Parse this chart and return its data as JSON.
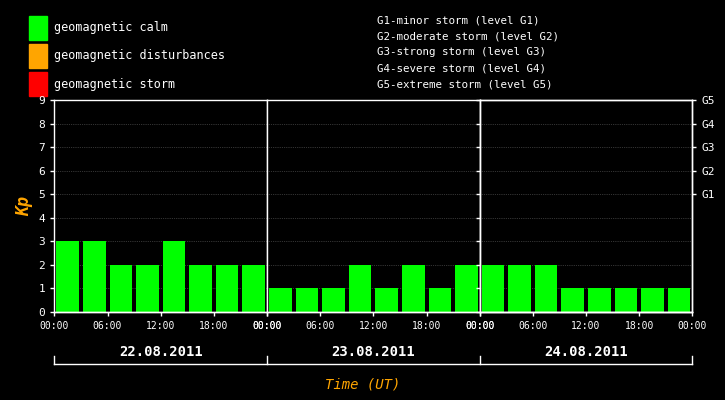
{
  "background_color": "#000000",
  "bar_color_calm": "#00ff00",
  "bar_color_disturbance": "#ffa500",
  "bar_color_storm": "#ff0000",
  "axis_color": "#ffffff",
  "tick_color": "#ffffff",
  "title_color": "#ffa500",
  "kp_label_color": "#ffa500",
  "date_label_color": "#ffffff",
  "legend_text_color": "#ffffff",
  "right_label_color": "#ffffff",
  "grid_color": "#666666",
  "days": [
    "22.08.2011",
    "23.08.2011",
    "24.08.2011"
  ],
  "kp_values": [
    [
      3,
      3,
      2,
      2,
      3,
      2,
      2,
      2
    ],
    [
      1,
      1,
      1,
      2,
      1,
      2,
      1,
      2
    ],
    [
      2,
      2,
      2,
      1,
      1,
      1,
      1,
      1
    ]
  ],
  "ylim": [
    0,
    9
  ],
  "yticks": [
    0,
    1,
    2,
    3,
    4,
    5,
    6,
    7,
    8,
    9
  ],
  "xtick_labels": [
    "00:00",
    "06:00",
    "12:00",
    "18:00",
    "00:00"
  ],
  "legend_items": [
    {
      "label": "geomagnetic calm",
      "color": "#00ff00"
    },
    {
      "label": "geomagnetic disturbances",
      "color": "#ffa500"
    },
    {
      "label": "geomagnetic storm",
      "color": "#ff0000"
    }
  ],
  "right_axis_labels": [
    {
      "y": 5,
      "text": "G1"
    },
    {
      "y": 6,
      "text": "G2"
    },
    {
      "y": 7,
      "text": "G3"
    },
    {
      "y": 8,
      "text": "G4"
    },
    {
      "y": 9,
      "text": "G5"
    }
  ],
  "storm_level_labels": [
    "G1-minor storm (level G1)",
    "G2-moderate storm (level G2)",
    "G3-strong storm (level G3)",
    "G4-severe storm (level G4)",
    "G5-extreme storm (level G5)"
  ],
  "xlabel": "Time (UT)",
  "ylabel": "Kp",
  "figsize": [
    7.25,
    4.0
  ],
  "dpi": 100
}
